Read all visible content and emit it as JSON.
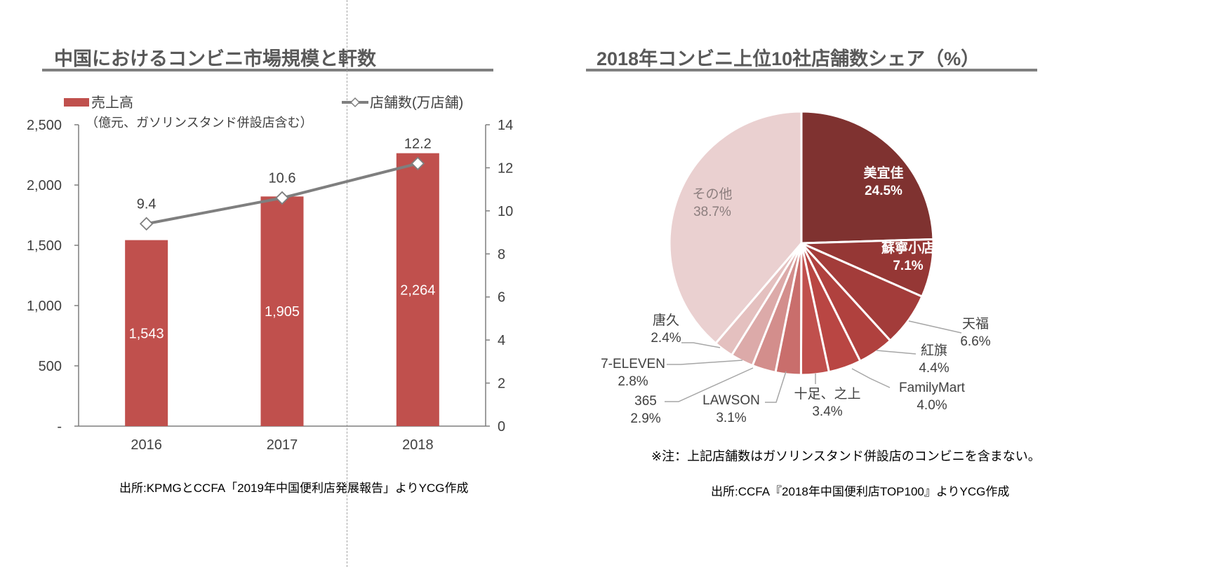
{
  "left": {
    "title": "中国におけるコンビニ市場規模と軒数",
    "source": "出所:KPMGとCCFA「2019年中国便利店発展報告」よりYCG作成"
  },
  "right": {
    "title": "2018年コンビニ上位10社店舗数シェア（%）",
    "note": "※注：上記店舗数はガソリンスタンド併設店のコンビニを含まない。",
    "source": "出所:CCFA『2018年中国便利店TOP100』よりYCG作成"
  },
  "chart_data": [
    {
      "type": "bar",
      "categories": [
        "2016",
        "2017",
        "2018"
      ],
      "series": [
        {
          "name": "売上高",
          "values": [
            1543,
            1905,
            2264
          ],
          "labels": [
            "1,543",
            "1,905",
            "2,264"
          ],
          "color": "#c0504d"
        },
        {
          "name": "店舗数(万店舗)",
          "kind": "line",
          "axis": "right",
          "values": [
            9.4,
            10.6,
            12.2
          ],
          "labels": [
            "9.4",
            "10.6",
            "12.2"
          ],
          "color": "#7f7f7f"
        }
      ],
      "left_axis_note": "（億元、ガソリンスタンド併設店含む）",
      "ylim": [
        0,
        2500
      ],
      "yticks": [
        "-",
        "500",
        "1,000",
        "1,500",
        "2,000",
        "2,500"
      ],
      "y2lim": [
        0,
        14
      ],
      "y2ticks": [
        "0",
        "2",
        "4",
        "6",
        "8",
        "10",
        "12",
        "14"
      ],
      "grid": false,
      "legend": "top"
    },
    {
      "type": "pie",
      "slices": [
        {
          "name": "美宜佳",
          "value": 24.5,
          "label": "24.5%",
          "color": "#7f3230",
          "inside": true
        },
        {
          "name": "蘇寧小店",
          "value": 7.1,
          "label": "7.1%",
          "color": "#953735",
          "inside": true
        },
        {
          "name": "天福",
          "value": 6.6,
          "label": "6.6%",
          "color": "#a33c3a"
        },
        {
          "name": "紅旗",
          "value": 4.4,
          "label": "4.4%",
          "color": "#b0413e"
        },
        {
          "name": "FamilyMart",
          "value": 4.0,
          "label": "4.0%",
          "color": "#b94643"
        },
        {
          "name": "十足、之上",
          "value": 3.4,
          "label": "3.4%",
          "color": "#c0504d"
        },
        {
          "name": "LAWSON",
          "value": 3.1,
          "label": "3.1%",
          "color": "#c96e6c"
        },
        {
          "name": "365",
          "value": 2.9,
          "label": "2.9%",
          "color": "#d38e8c"
        },
        {
          "name": "7-ELEVEN",
          "value": 2.8,
          "label": "2.8%",
          "color": "#dcaaa9"
        },
        {
          "name": "唐久",
          "value": 2.4,
          "label": "2.4%",
          "color": "#e4c0bf"
        },
        {
          "name": "その他",
          "value": 38.7,
          "label": "38.7%",
          "color": "#ead0d0",
          "inside": true
        }
      ],
      "start_angle": "12 o'clock",
      "direction": "clockwise"
    }
  ]
}
